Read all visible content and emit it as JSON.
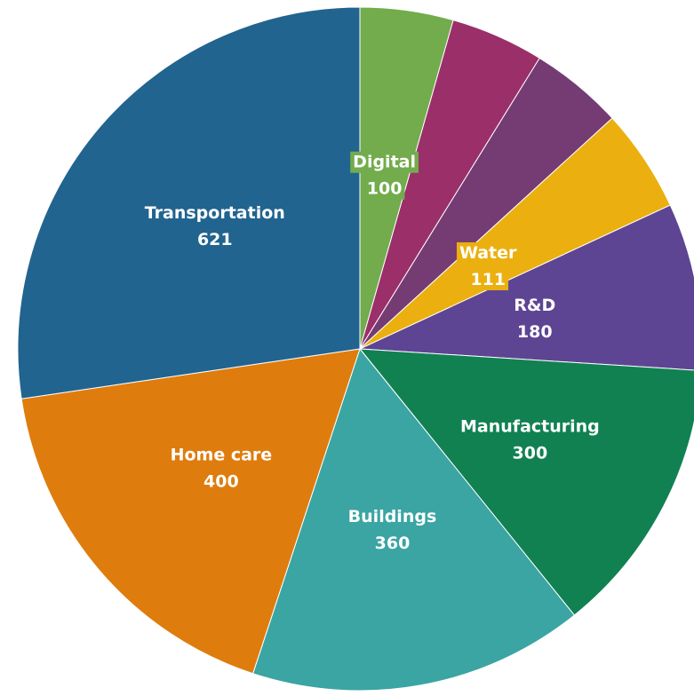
{
  "chart_data": {
    "type": "pie",
    "title": "",
    "start_angle_deg": 0,
    "direction": "clockwise",
    "slices": [
      {
        "label": "Digital",
        "value": 100,
        "value_label": "100",
        "color": "#72ac4d",
        "labeled": true,
        "label_box": true
      },
      {
        "label": "",
        "value": 100,
        "value_label": "",
        "color": "#9b2f6a",
        "labeled": false,
        "label_box": false
      },
      {
        "label": "",
        "value": 100,
        "value_label": "",
        "color": "#743c72",
        "labeled": false,
        "label_box": false
      },
      {
        "label": "Water",
        "value": 111,
        "value_label": "111",
        "color": "#ebb00f",
        "labeled": true,
        "label_box": true
      },
      {
        "label": "R&D",
        "value": 180,
        "value_label": "180",
        "color": "#5d4593",
        "labeled": true,
        "label_box": false
      },
      {
        "label": "Manufacturing",
        "value": 300,
        "value_label": "300",
        "color": "#118152",
        "labeled": true,
        "label_box": false
      },
      {
        "label": "Buildings",
        "value": 360,
        "value_label": "360",
        "color": "#3aa5a3",
        "labeled": true,
        "label_box": false
      },
      {
        "label": "Home care",
        "value": 400,
        "value_label": "400",
        "color": "#df7c0e",
        "labeled": true,
        "label_box": false
      },
      {
        "label": "Transportation",
        "value": 621,
        "value_label": "621",
        "color": "#21648f",
        "labeled": true,
        "label_box": false
      }
    ]
  }
}
